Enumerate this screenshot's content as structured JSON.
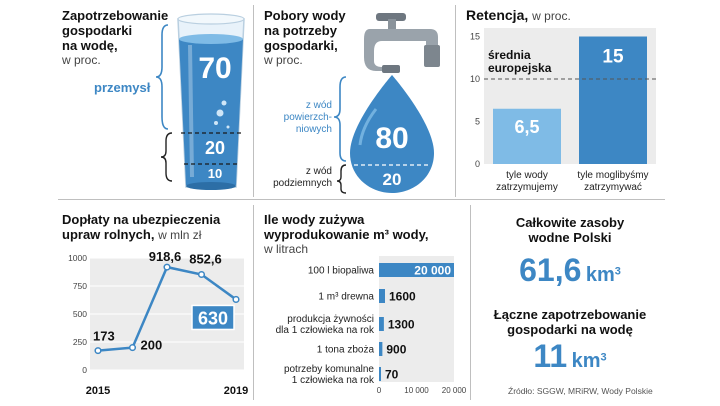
{
  "panel1": {
    "title": "Zapotrzebowanie gospodarki na wodę,",
    "title_lines": [
      "Zapotrzebowanie",
      "gospodarki",
      "na wodę,"
    ],
    "unit": "w proc.",
    "industry_label": "przemysł",
    "values": [
      70,
      20,
      10
    ],
    "colors": {
      "accent": "#3d87c4",
      "light": "#c9e3f6"
    }
  },
  "panel2": {
    "title_lines": [
      "Pobory wody",
      "na potrzeby",
      "gospodarki,"
    ],
    "unit": "w proc.",
    "surface_label_lines": [
      "z wód",
      "powierzch-",
      "niowych"
    ],
    "ground_label_lines": [
      "z wód",
      "podziemnych"
    ],
    "surface_value": 80,
    "ground_value": 20
  },
  "panel3": {
    "title": "Retencja,",
    "unit": "w proc.",
    "chart_data": {
      "type": "bar",
      "categories": [
        "tyle wody zatrzymujemy",
        "tyle moglibyśmy zatrzymywać"
      ],
      "category_lines": [
        [
          "tyle wody",
          "zatrzymujemy"
        ],
        [
          "tyle moglibyśmy",
          "zatrzymywać"
        ]
      ],
      "values": [
        6.5,
        15
      ],
      "value_labels": [
        "6,5",
        "15"
      ],
      "ylim": [
        0,
        16
      ],
      "yticks": [
        0,
        5,
        10,
        15
      ],
      "reference_line": {
        "value": 10,
        "label_lines": [
          "średnia",
          "europejska"
        ]
      },
      "colors": [
        "#7fbbe6",
        "#3d87c4"
      ]
    }
  },
  "panel4": {
    "title": "Dopłaty na ubezpieczenia",
    "title2": "upraw rolnych,",
    "unit": "w mln zł",
    "chart_data": {
      "type": "line",
      "x": [
        2015,
        2016,
        2017,
        2018,
        2019
      ],
      "y": [
        173,
        200,
        918.6,
        852.6,
        630
      ],
      "value_labels": [
        "173",
        "200",
        "918,6",
        "852,6",
        "630"
      ],
      "xtick_labels": [
        "2015",
        "2019"
      ],
      "ylim": [
        0,
        1000
      ],
      "yticks": [
        0,
        250,
        500,
        750,
        1000
      ],
      "color": "#3d87c4"
    }
  },
  "panel5": {
    "title": "Ile wody zużywa",
    "title2": "wyprodukowanie m³ wody,",
    "unit": "w litrach",
    "chart_data": {
      "type": "bar",
      "orientation": "horizontal",
      "categories": [
        "100 l biopaliwa",
        "1 m³ drewna",
        "produkcja żywności dla 1 człowieka na rok",
        "1 tona zboża",
        "potrzeby komunalne 1 człowieka na rok"
      ],
      "category_lines": [
        [
          "100 l biopaliwa"
        ],
        [
          "1 m³ drewna"
        ],
        [
          "produkcja żywności",
          "dla 1 człowieka na rok"
        ],
        [
          "1 tona zboża"
        ],
        [
          "potrzeby komunalne",
          "1 człowieka na rok"
        ]
      ],
      "values": [
        20000,
        1600,
        1300,
        900,
        70
      ],
      "value_labels": [
        "20 000",
        "1600",
        "1300",
        "900",
        "70"
      ],
      "xlim": [
        0,
        20000
      ],
      "xtick_labels": [
        "0",
        "10 000",
        "20 000"
      ],
      "color": "#3d87c4"
    }
  },
  "panel6": {
    "title_lines": [
      "Całkowite zasoby",
      "wodne Polski"
    ],
    "value1": "61,6",
    "unit1": "km",
    "sup1": "3",
    "title2_lines": [
      "Łączne zapotrzebowanie",
      "gospodarki na wodę"
    ],
    "value2": "11",
    "unit2": "km",
    "sup2": "3"
  },
  "source": "Źródło: SGGW, MRiRW, Wody Polskie"
}
